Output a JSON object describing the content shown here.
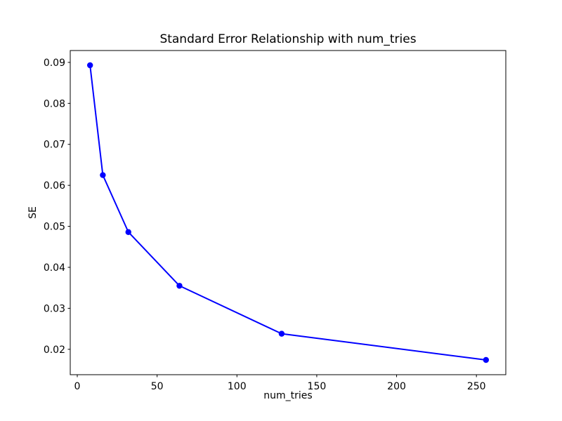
{
  "chart_data": {
    "type": "line",
    "title": "Standard Error Relationship with num_tries",
    "xlabel": "num_tries",
    "ylabel": "SE",
    "series": [
      {
        "name": "SE",
        "x": [
          8,
          16,
          32,
          64,
          128,
          256
        ],
        "y": [
          0.0893,
          0.0625,
          0.0486,
          0.0355,
          0.0238,
          0.0174
        ]
      }
    ],
    "line_color": "#0000ff",
    "marker": "circle",
    "marker_color": "#0000ff",
    "xlim": [
      -4.4,
      268.4
    ],
    "ylim": [
      0.013805,
      0.092895
    ],
    "xticks": [
      0,
      50,
      100,
      150,
      200,
      250
    ],
    "yticks": [
      0.02,
      0.03,
      0.04,
      0.05,
      0.06,
      0.07,
      0.08,
      0.09
    ],
    "ytick_decimals": 2,
    "grid": false,
    "legend": null,
    "background_color": "#ffffff",
    "axis_color": "#000000",
    "text_color": "#000000"
  }
}
